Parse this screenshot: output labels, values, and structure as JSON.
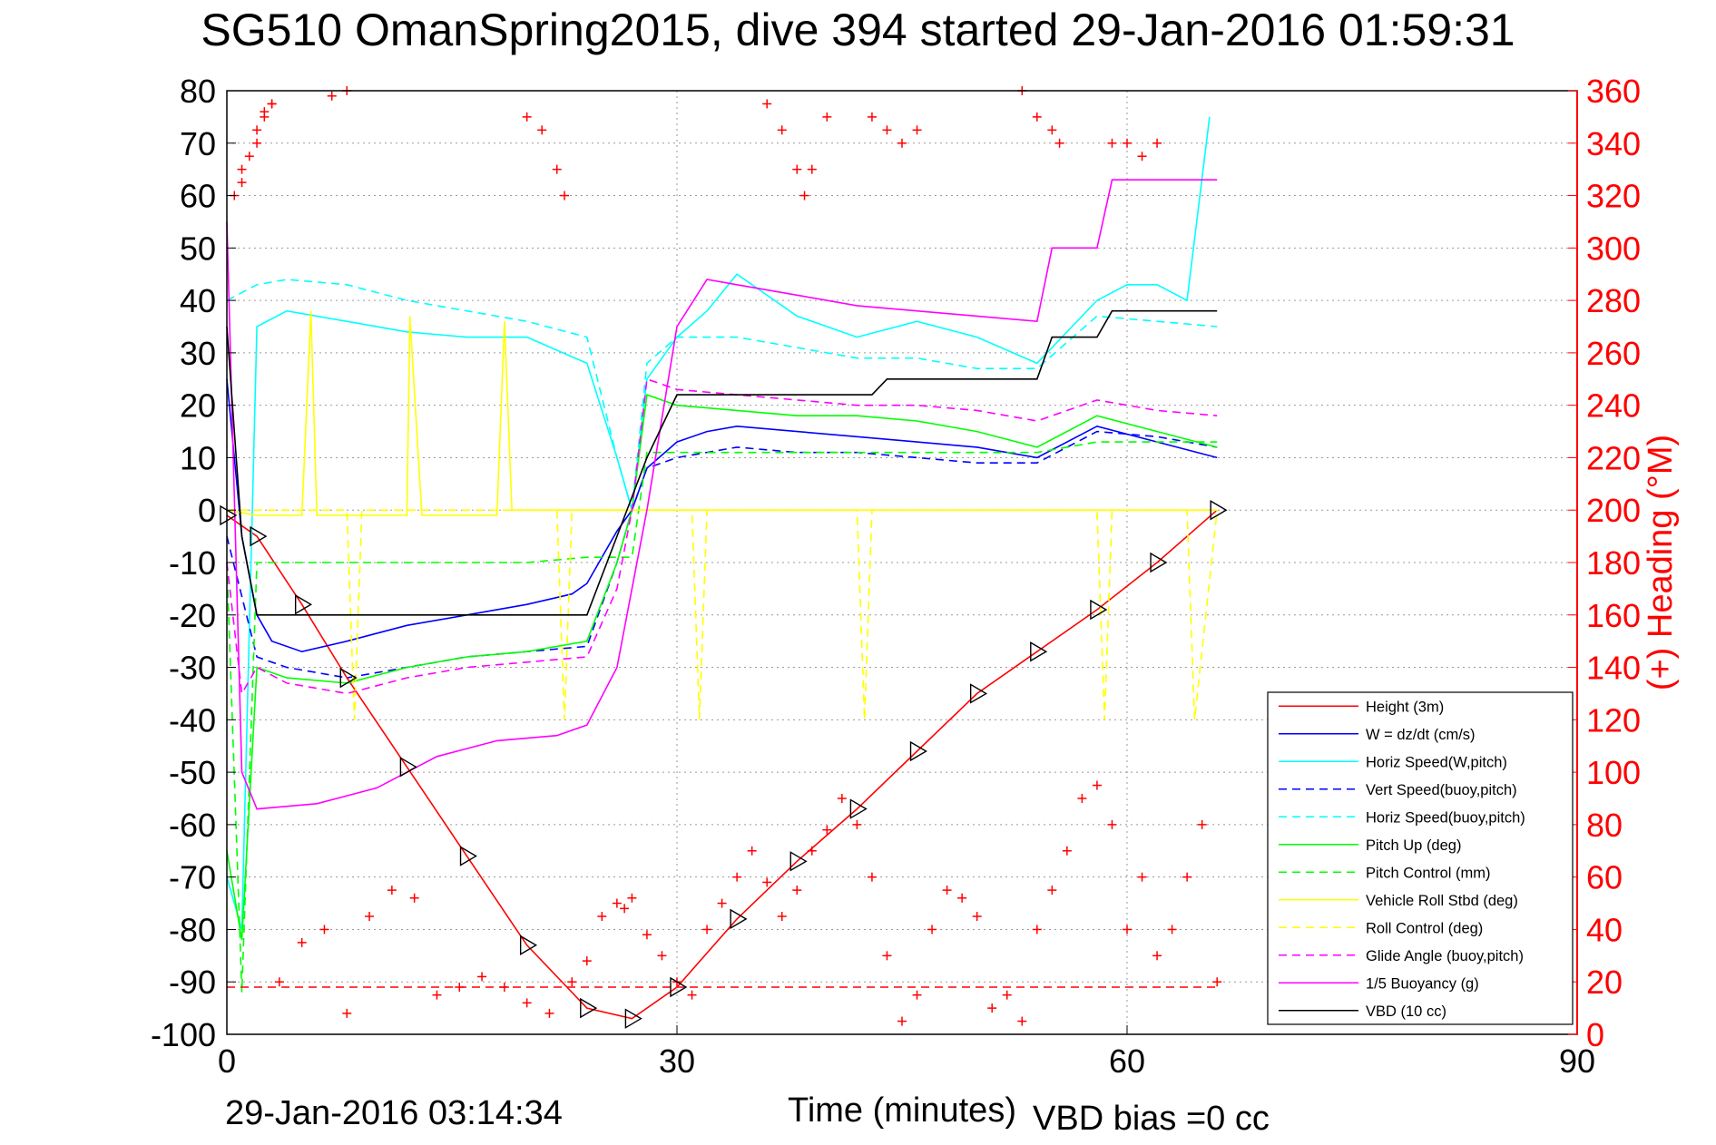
{
  "title": "SG510 OmanSpring2015, dive 394 started 29-Jan-2016 01:59:31",
  "footer": {
    "timestamp": "29-Jan-2016 03:14:34",
    "vbd_bias": "VBD bias =0 cc"
  },
  "colors": {
    "height": "#ff0000",
    "w": "#0000ff",
    "horiz_speed": "#00ffff",
    "pitch": "#00ff00",
    "roll": "#ffff00",
    "glide": "#ff00ff",
    "buoyancy": "#ff00ff",
    "vbd": "#000000",
    "heading": "#ff0000"
  },
  "chart_data": {
    "type": "line",
    "xlabel": "Time (minutes)",
    "ylabel_right": "(+) Heading (°M)",
    "xlim": [
      0,
      90
    ],
    "ylim_left": [
      -100,
      80
    ],
    "ylim_right": [
      0,
      360
    ],
    "xticks": [
      "0",
      "30",
      "60",
      "90"
    ],
    "yticks_left": [
      "80",
      "70",
      "60",
      "50",
      "40",
      "30",
      "20",
      "10",
      "0",
      "-10",
      "-20",
      "-30",
      "-40",
      "-50",
      "-60",
      "-70",
      "-80",
      "-90",
      "-100"
    ],
    "yticks_right": [
      "360",
      "340",
      "320",
      "300",
      "280",
      "260",
      "240",
      "220",
      "200",
      "180",
      "160",
      "140",
      "120",
      "100",
      "80",
      "60",
      "40",
      "20",
      "0"
    ],
    "grid": true,
    "legend_position": "bottom-right",
    "series": [
      {
        "name": "Height (3m)",
        "color": "#ff0000",
        "style": "solid",
        "x": [
          0,
          2,
          5,
          8,
          12,
          16,
          20,
          24,
          27,
          30,
          34,
          38,
          42,
          46,
          50,
          54,
          58,
          62,
          66
        ],
        "y": [
          -1,
          -5,
          -18,
          -32,
          -49,
          -66,
          -83,
          -95,
          -97,
          -91,
          -78,
          -67,
          -57,
          -46,
          -35,
          -27,
          -19,
          -10,
          0
        ]
      },
      {
        "name": "W = dz/dt (cm/s)",
        "color": "#0000ff",
        "style": "solid",
        "x": [
          0,
          1,
          2,
          3,
          5,
          8,
          12,
          16,
          20,
          23,
          24,
          26,
          27,
          28,
          30,
          32,
          34,
          38,
          42,
          46,
          50,
          54,
          58,
          62,
          66
        ],
        "y": [
          25,
          -5,
          -20,
          -25,
          -27,
          -25,
          -22,
          -20,
          -18,
          -16,
          -14,
          -4,
          0,
          8,
          13,
          15,
          16,
          15,
          14,
          13,
          12,
          10,
          16,
          13,
          10
        ]
      },
      {
        "name": "Horiz Speed(W,pitch)",
        "color": "#00ffff",
        "style": "solid",
        "x": [
          0,
          1,
          2,
          4,
          8,
          12,
          16,
          20,
          24,
          26,
          27,
          28,
          30,
          32,
          34,
          38,
          42,
          46,
          50,
          54,
          58,
          60,
          62,
          64,
          65.5
        ],
        "y": [
          -70,
          -80,
          35,
          38,
          36,
          34,
          33,
          33,
          28,
          10,
          0,
          25,
          33,
          38,
          45,
          37,
          33,
          36,
          33,
          28,
          40,
          43,
          43,
          40,
          75
        ]
      },
      {
        "name": "Vert Speed(buoy,pitch)",
        "color": "#0000ff",
        "style": "dashed",
        "x": [
          0,
          2,
          4,
          8,
          12,
          16,
          20,
          24,
          26,
          27,
          28,
          30,
          34,
          38,
          42,
          46,
          50,
          54,
          58,
          62,
          66
        ],
        "y": [
          -5,
          -28,
          -30,
          -32,
          -30,
          -28,
          -27,
          -26,
          -10,
          0,
          8,
          10,
          12,
          11,
          11,
          10,
          9,
          9,
          15,
          14,
          12
        ]
      },
      {
        "name": "Horiz Speed(buoy,pitch)",
        "color": "#00ffff",
        "style": "dashed",
        "x": [
          0,
          2,
          4,
          8,
          12,
          16,
          20,
          24,
          26,
          27,
          28,
          30,
          34,
          38,
          42,
          46,
          50,
          54,
          58,
          62,
          66
        ],
        "y": [
          40,
          43,
          44,
          43,
          40,
          38,
          36,
          33,
          10,
          0,
          28,
          33,
          33,
          31,
          29,
          29,
          27,
          27,
          37,
          36,
          35
        ]
      },
      {
        "name": "Pitch Up (deg)",
        "color": "#00ff00",
        "style": "solid",
        "x": [
          0,
          1,
          2,
          4,
          8,
          12,
          16,
          20,
          24,
          26,
          27,
          28,
          30,
          34,
          38,
          42,
          46,
          50,
          54,
          58,
          62,
          66
        ],
        "y": [
          -65,
          -82,
          -30,
          -32,
          -33,
          -30,
          -28,
          -27,
          -25,
          -10,
          0,
          22,
          20,
          19,
          18,
          18,
          17,
          15,
          12,
          18,
          15,
          12
        ]
      },
      {
        "name": "Pitch Control (mm)",
        "color": "#00ff00",
        "style": "dashed",
        "x": [
          0,
          1,
          2,
          4,
          8,
          12,
          16,
          20,
          24,
          27,
          28,
          30,
          34,
          38,
          42,
          46,
          50,
          54,
          58,
          62,
          66
        ],
        "y": [
          -10,
          -92,
          -10,
          -10,
          -10,
          -10,
          -10,
          -10,
          -9,
          -9,
          11,
          11,
          11,
          11,
          11,
          11,
          11,
          11,
          13,
          13,
          13
        ]
      },
      {
        "name": "Vehicle Roll Stbd (deg)",
        "color": "#ffff00",
        "style": "solid",
        "x": [
          0,
          2,
          5,
          5.6,
          6,
          9,
          12,
          12.2,
          13,
          18,
          18.5,
          19,
          24,
          26,
          30,
          36,
          38,
          42,
          46,
          50,
          54,
          56,
          58,
          60,
          62,
          65,
          66
        ],
        "y": [
          0,
          -1,
          -1,
          38,
          -1,
          -1,
          -1,
          37,
          -1,
          -1,
          36,
          0,
          0,
          0,
          0,
          0,
          0,
          0,
          0,
          0,
          0,
          0,
          0,
          0,
          0,
          0,
          0
        ]
      },
      {
        "name": "Roll Control (deg)",
        "color": "#ffff00",
        "style": "dashed",
        "x": [
          0,
          8,
          8.5,
          9,
          22,
          22.5,
          23,
          31,
          31.5,
          32,
          42,
          42.5,
          43,
          56,
          58,
          58.5,
          59,
          64,
          64.5,
          66
        ],
        "y": [
          0,
          0,
          -40,
          0,
          0,
          -40,
          0,
          0,
          -40,
          0,
          0,
          -40,
          0,
          0,
          0,
          -40,
          0,
          0,
          -40,
          0
        ]
      },
      {
        "name": "Glide Angle (buoy,pitch)",
        "color": "#ff00ff",
        "style": "dashed",
        "x": [
          0,
          1,
          2,
          4,
          8,
          12,
          16,
          20,
          24,
          26,
          27,
          28,
          30,
          34,
          38,
          42,
          46,
          50,
          54,
          58,
          62,
          66
        ],
        "y": [
          -10,
          -35,
          -30,
          -33,
          -35,
          -32,
          -30,
          -29,
          -28,
          -15,
          0,
          25,
          23,
          22,
          21,
          20,
          20,
          19,
          17,
          21,
          19,
          18
        ]
      },
      {
        "name": "1/5 Buoyancy (g)",
        "color": "#ff00ff",
        "style": "solid",
        "x": [
          0,
          1,
          2,
          6,
          10,
          14,
          18,
          22,
          24,
          26,
          28,
          30,
          32,
          34,
          38,
          42,
          46,
          50,
          54,
          55,
          58,
          59,
          62,
          66
        ],
        "y": [
          55,
          -50,
          -57,
          -56,
          -53,
          -47,
          -44,
          -43,
          -41,
          -30,
          0,
          35,
          44,
          43,
          41,
          39,
          38,
          37,
          36,
          50,
          50,
          63,
          63,
          63
        ]
      },
      {
        "name": "VBD (10 cc)",
        "color": "#000000",
        "style": "solid",
        "x": [
          0,
          1,
          2,
          5,
          10,
          15,
          20,
          24,
          26,
          28,
          30,
          31,
          35,
          40,
          43,
          44,
          50,
          54,
          55,
          58,
          59,
          62,
          66
        ],
        "y": [
          35,
          -5,
          -20,
          -20,
          -20,
          -20,
          -20,
          -20,
          -5,
          10,
          22,
          22,
          22,
          22,
          22,
          25,
          25,
          25,
          33,
          33,
          38,
          38,
          38
        ]
      }
    ],
    "heading": {
      "name": "Heading (°M)",
      "color": "#ff0000",
      "marker": "+",
      "x": [
        0.5,
        1,
        1.5,
        2,
        2.5,
        3,
        3.5,
        5,
        6.5,
        8,
        9.5,
        11,
        12.5,
        14,
        15.5,
        17,
        18.5,
        20,
        21.5,
        23,
        24,
        25,
        26,
        26.5,
        27,
        28,
        29,
        30,
        31,
        32,
        33,
        34,
        35,
        36,
        37,
        38,
        39,
        40,
        41,
        42,
        43,
        44,
        45,
        46,
        47,
        48,
        49,
        50,
        51,
        52,
        53,
        54,
        55,
        56,
        57,
        58,
        59,
        60,
        61,
        62,
        63,
        64,
        65,
        66
      ],
      "y": [
        320,
        325,
        335,
        345,
        352,
        355,
        20,
        35,
        40,
        8,
        45,
        55,
        52,
        15,
        18,
        22,
        18,
        12,
        8,
        20,
        28,
        45,
        50,
        48,
        52,
        38,
        30,
        20,
        15,
        40,
        50,
        60,
        70,
        58,
        45,
        55,
        70,
        78,
        90,
        80,
        60,
        30,
        5,
        15,
        40,
        55,
        52,
        45,
        10,
        15,
        5,
        40,
        55,
        70,
        90,
        95,
        80,
        40,
        60,
        30,
        40,
        60,
        80,
        20
      ]
    },
    "heading_top": {
      "x": [
        1,
        2,
        2.5,
        3,
        7,
        8,
        20,
        21,
        22,
        22.5,
        36,
        37,
        38,
        38.5,
        39,
        40,
        43,
        44,
        45,
        46,
        53,
        54,
        55,
        55.5,
        59,
        60,
        61,
        62
      ],
      "y": [
        330,
        340,
        350,
        355,
        358,
        360,
        350,
        345,
        330,
        320,
        355,
        345,
        330,
        320,
        330,
        350,
        350,
        345,
        340,
        345,
        360,
        350,
        345,
        340,
        340,
        340,
        335,
        340
      ]
    },
    "heading_ref": 18,
    "legend_entries": [
      "Height (3m)",
      "W = dz/dt (cm/s)",
      "Horiz Speed(W,pitch)",
      "Vert Speed(buoy,pitch)",
      "Horiz Speed(buoy,pitch)",
      "Pitch Up (deg)",
      "Pitch Control (mm)",
      "Vehicle Roll Stbd (deg)",
      "Roll Control (deg)",
      "Glide Angle (buoy,pitch)",
      "1/5 Buoyancy (g)",
      "VBD (10 cc)"
    ]
  }
}
